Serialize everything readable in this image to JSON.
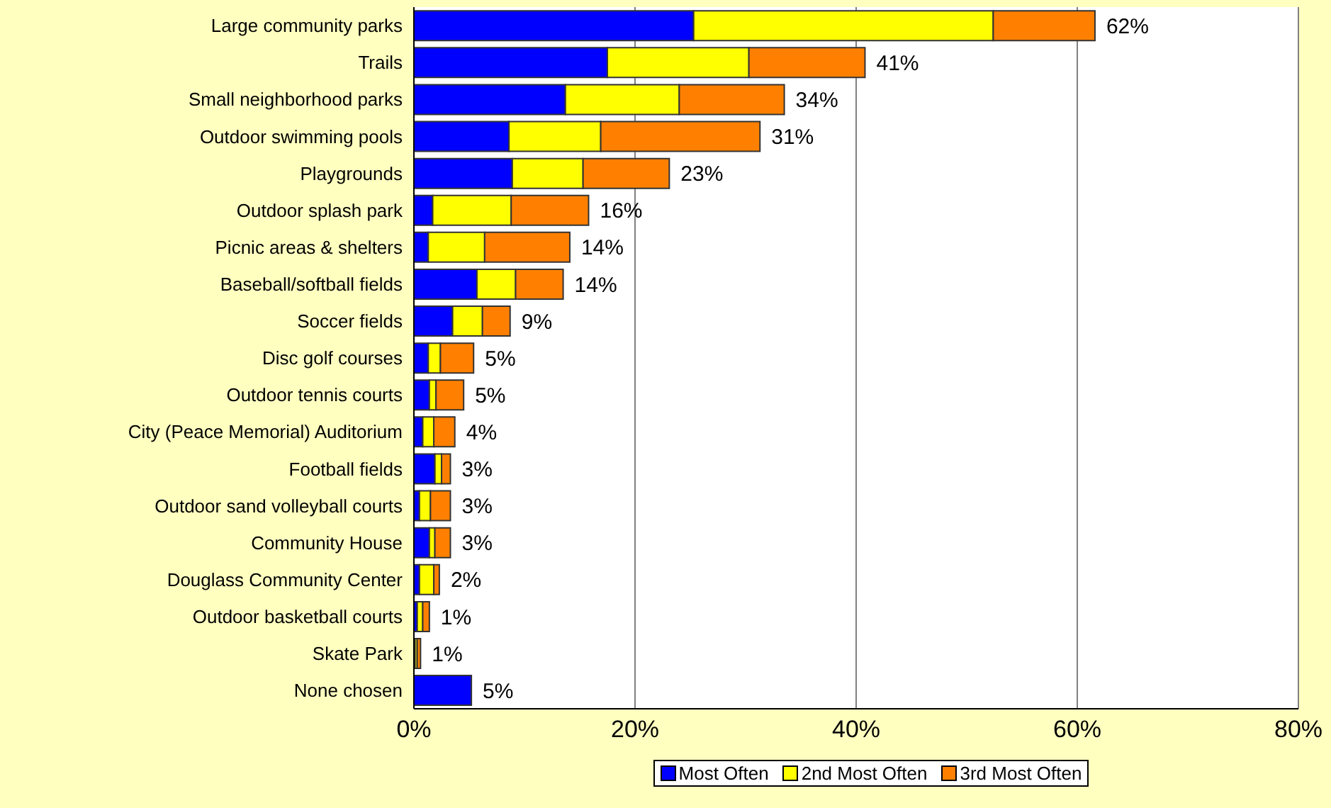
{
  "chart_data": {
    "type": "bar",
    "orientation": "horizontal",
    "stacked": true,
    "categories": [
      "Large community parks",
      "Trails",
      "Small neighborhood parks",
      "Outdoor swimming pools",
      "Playgrounds",
      "Outdoor splash park",
      "Picnic areas & shelters",
      "Baseball/softball fields",
      "Soccer fields",
      "Disc golf courses",
      "Outdoor tennis courts",
      "City (Peace Memorial) Auditorium",
      "Football fields",
      "Outdoor sand volleyball courts",
      "Community House",
      "Douglass Community Center",
      "Outdoor basketball courts",
      "Skate Park",
      "None chosen"
    ],
    "series": [
      {
        "name": "Most Often",
        "color": "#0000ff",
        "values": [
          25.3,
          17.5,
          13.7,
          8.6,
          8.9,
          1.7,
          1.3,
          5.7,
          3.5,
          1.3,
          1.4,
          0.8,
          1.9,
          0.5,
          1.4,
          0.5,
          0.3,
          0.1,
          5.2
        ]
      },
      {
        "name": "2nd Most Often",
        "color": "#ffff00",
        "values": [
          27.1,
          12.8,
          10.3,
          8.3,
          6.4,
          7.1,
          5.1,
          3.5,
          2.7,
          1.1,
          0.6,
          1.0,
          0.6,
          1.0,
          0.5,
          1.3,
          0.5,
          0.2,
          0
        ]
      },
      {
        "name": "3rd Most Often",
        "color": "#ff8000",
        "values": [
          9.2,
          10.5,
          9.5,
          14.4,
          7.8,
          7.0,
          7.7,
          4.3,
          2.5,
          3.0,
          2.5,
          1.9,
          0.8,
          1.8,
          1.4,
          0.5,
          0.6,
          0.3,
          0
        ]
      }
    ],
    "totals": [
      "62%",
      "41%",
      "34%",
      "31%",
      "23%",
      "16%",
      "14%",
      "14%",
      "9%",
      "5%",
      "5%",
      "4%",
      "3%",
      "3%",
      "3%",
      "2%",
      "1%",
      "1%",
      "5%"
    ],
    "xlim": [
      0,
      80
    ],
    "xticks": [
      {
        "value": 0,
        "label": "0%"
      },
      {
        "value": 20,
        "label": "20%"
      },
      {
        "value": 40,
        "label": "40%"
      },
      {
        "value": 60,
        "label": "60%"
      },
      {
        "value": 80,
        "label": "80%"
      }
    ],
    "grid": "x",
    "legend": "bottom"
  }
}
